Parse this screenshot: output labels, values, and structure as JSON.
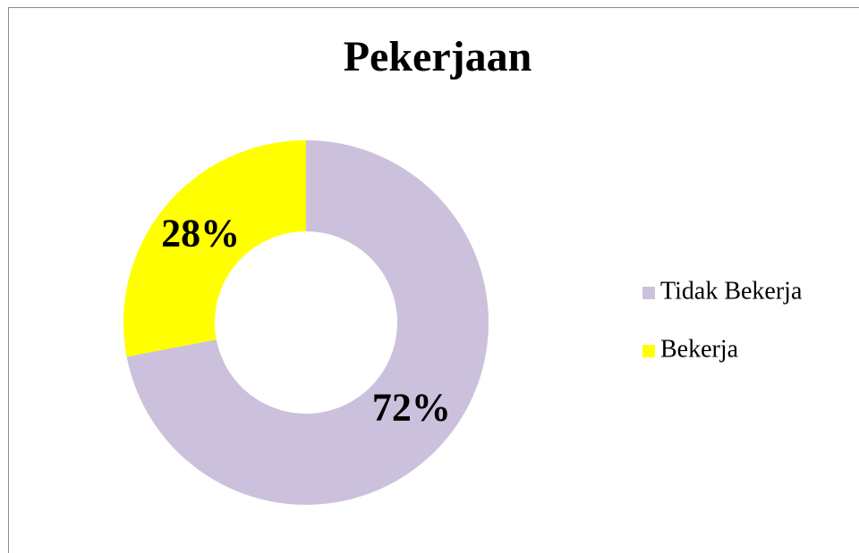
{
  "chart_data": {
    "type": "donut",
    "title": "Pekerjaan",
    "categories": [
      "Tidak Bekerja",
      "Bekerja"
    ],
    "values": [
      72,
      28
    ],
    "value_labels": [
      "72%",
      "28%"
    ],
    "colors": [
      "#ccc1dc",
      "#ffff00"
    ],
    "legend": "right"
  }
}
